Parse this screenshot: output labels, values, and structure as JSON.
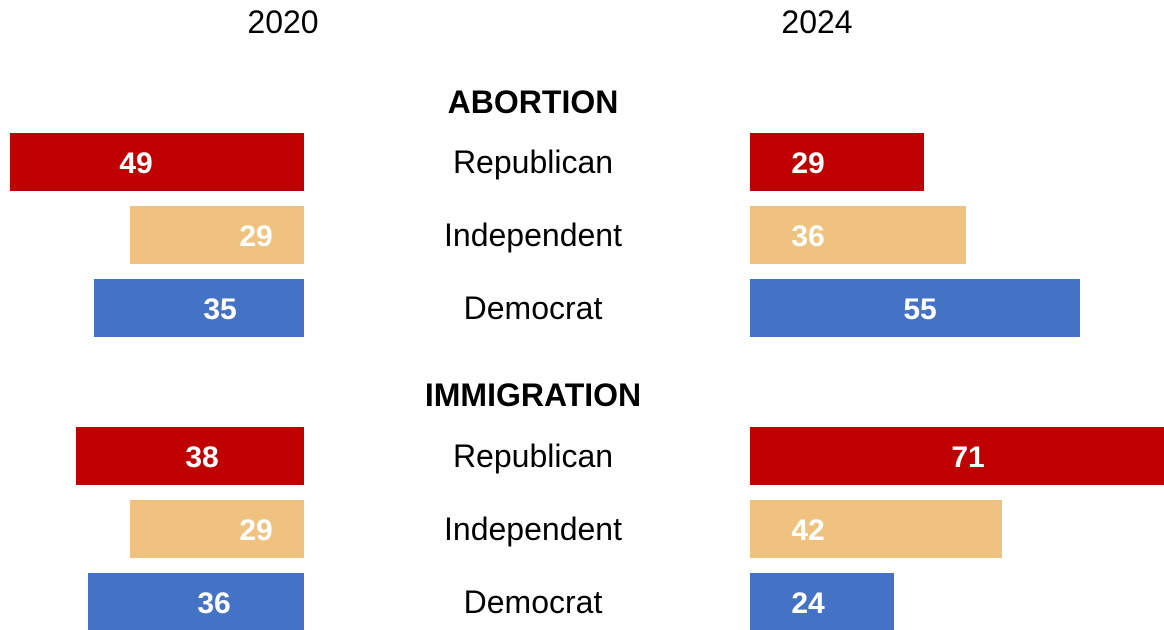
{
  "chart_data": {
    "type": "bar",
    "years": [
      "2020",
      "2024"
    ],
    "sections": [
      {
        "title": "ABORTION",
        "rows": [
          {
            "party": "Republican",
            "v2020": 49,
            "v2024": 29
          },
          {
            "party": "Independent",
            "v2020": 29,
            "v2024": 36
          },
          {
            "party": "Democrat",
            "v2020": 35,
            "v2024": 55
          }
        ]
      },
      {
        "title": "IMMIGRATION",
        "rows": [
          {
            "party": "Republican",
            "v2020": 38,
            "v2024": 71
          },
          {
            "party": "Independent",
            "v2020": 29,
            "v2024": 42
          },
          {
            "party": "Democrat",
            "v2020": 36,
            "v2024": 24
          }
        ]
      }
    ],
    "colors": {
      "Republican": "#C00000",
      "Independent": "#F0C27F",
      "Democrat": "#4472C4"
    }
  }
}
